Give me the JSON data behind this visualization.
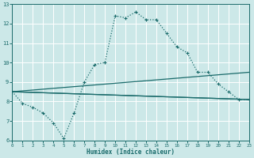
{
  "xlabel": "Humidex (Indice chaleur)",
  "background_color": "#cce8e8",
  "grid_color": "#ffffff",
  "line_color": "#1a6b6b",
  "xlim": [
    0,
    23
  ],
  "ylim": [
    6,
    13
  ],
  "xticks": [
    0,
    1,
    2,
    3,
    4,
    5,
    6,
    7,
    8,
    9,
    10,
    11,
    12,
    13,
    14,
    15,
    16,
    17,
    18,
    19,
    20,
    21,
    22,
    23
  ],
  "yticks": [
    6,
    7,
    8,
    9,
    10,
    11,
    12,
    13
  ],
  "curve_x": [
    0,
    1,
    2,
    3,
    4,
    5,
    6,
    7,
    8,
    9,
    10,
    11,
    12,
    13,
    14,
    15,
    16,
    17,
    18,
    19,
    20,
    21,
    22,
    23
  ],
  "curve_y": [
    8.5,
    7.9,
    7.7,
    7.4,
    6.9,
    6.1,
    7.4,
    9.0,
    9.9,
    10.0,
    12.4,
    12.3,
    12.6,
    12.2,
    12.2,
    11.5,
    10.8,
    10.5,
    9.5,
    9.5,
    8.9,
    8.5,
    8.1,
    8.1
  ],
  "line1_x": [
    0,
    23
  ],
  "line1_y": [
    8.5,
    9.5
  ],
  "line2_x": [
    0,
    23
  ],
  "line2_y": [
    8.5,
    8.1
  ],
  "line3_x": [
    0,
    23
  ],
  "line3_y": [
    8.5,
    8.1
  ]
}
